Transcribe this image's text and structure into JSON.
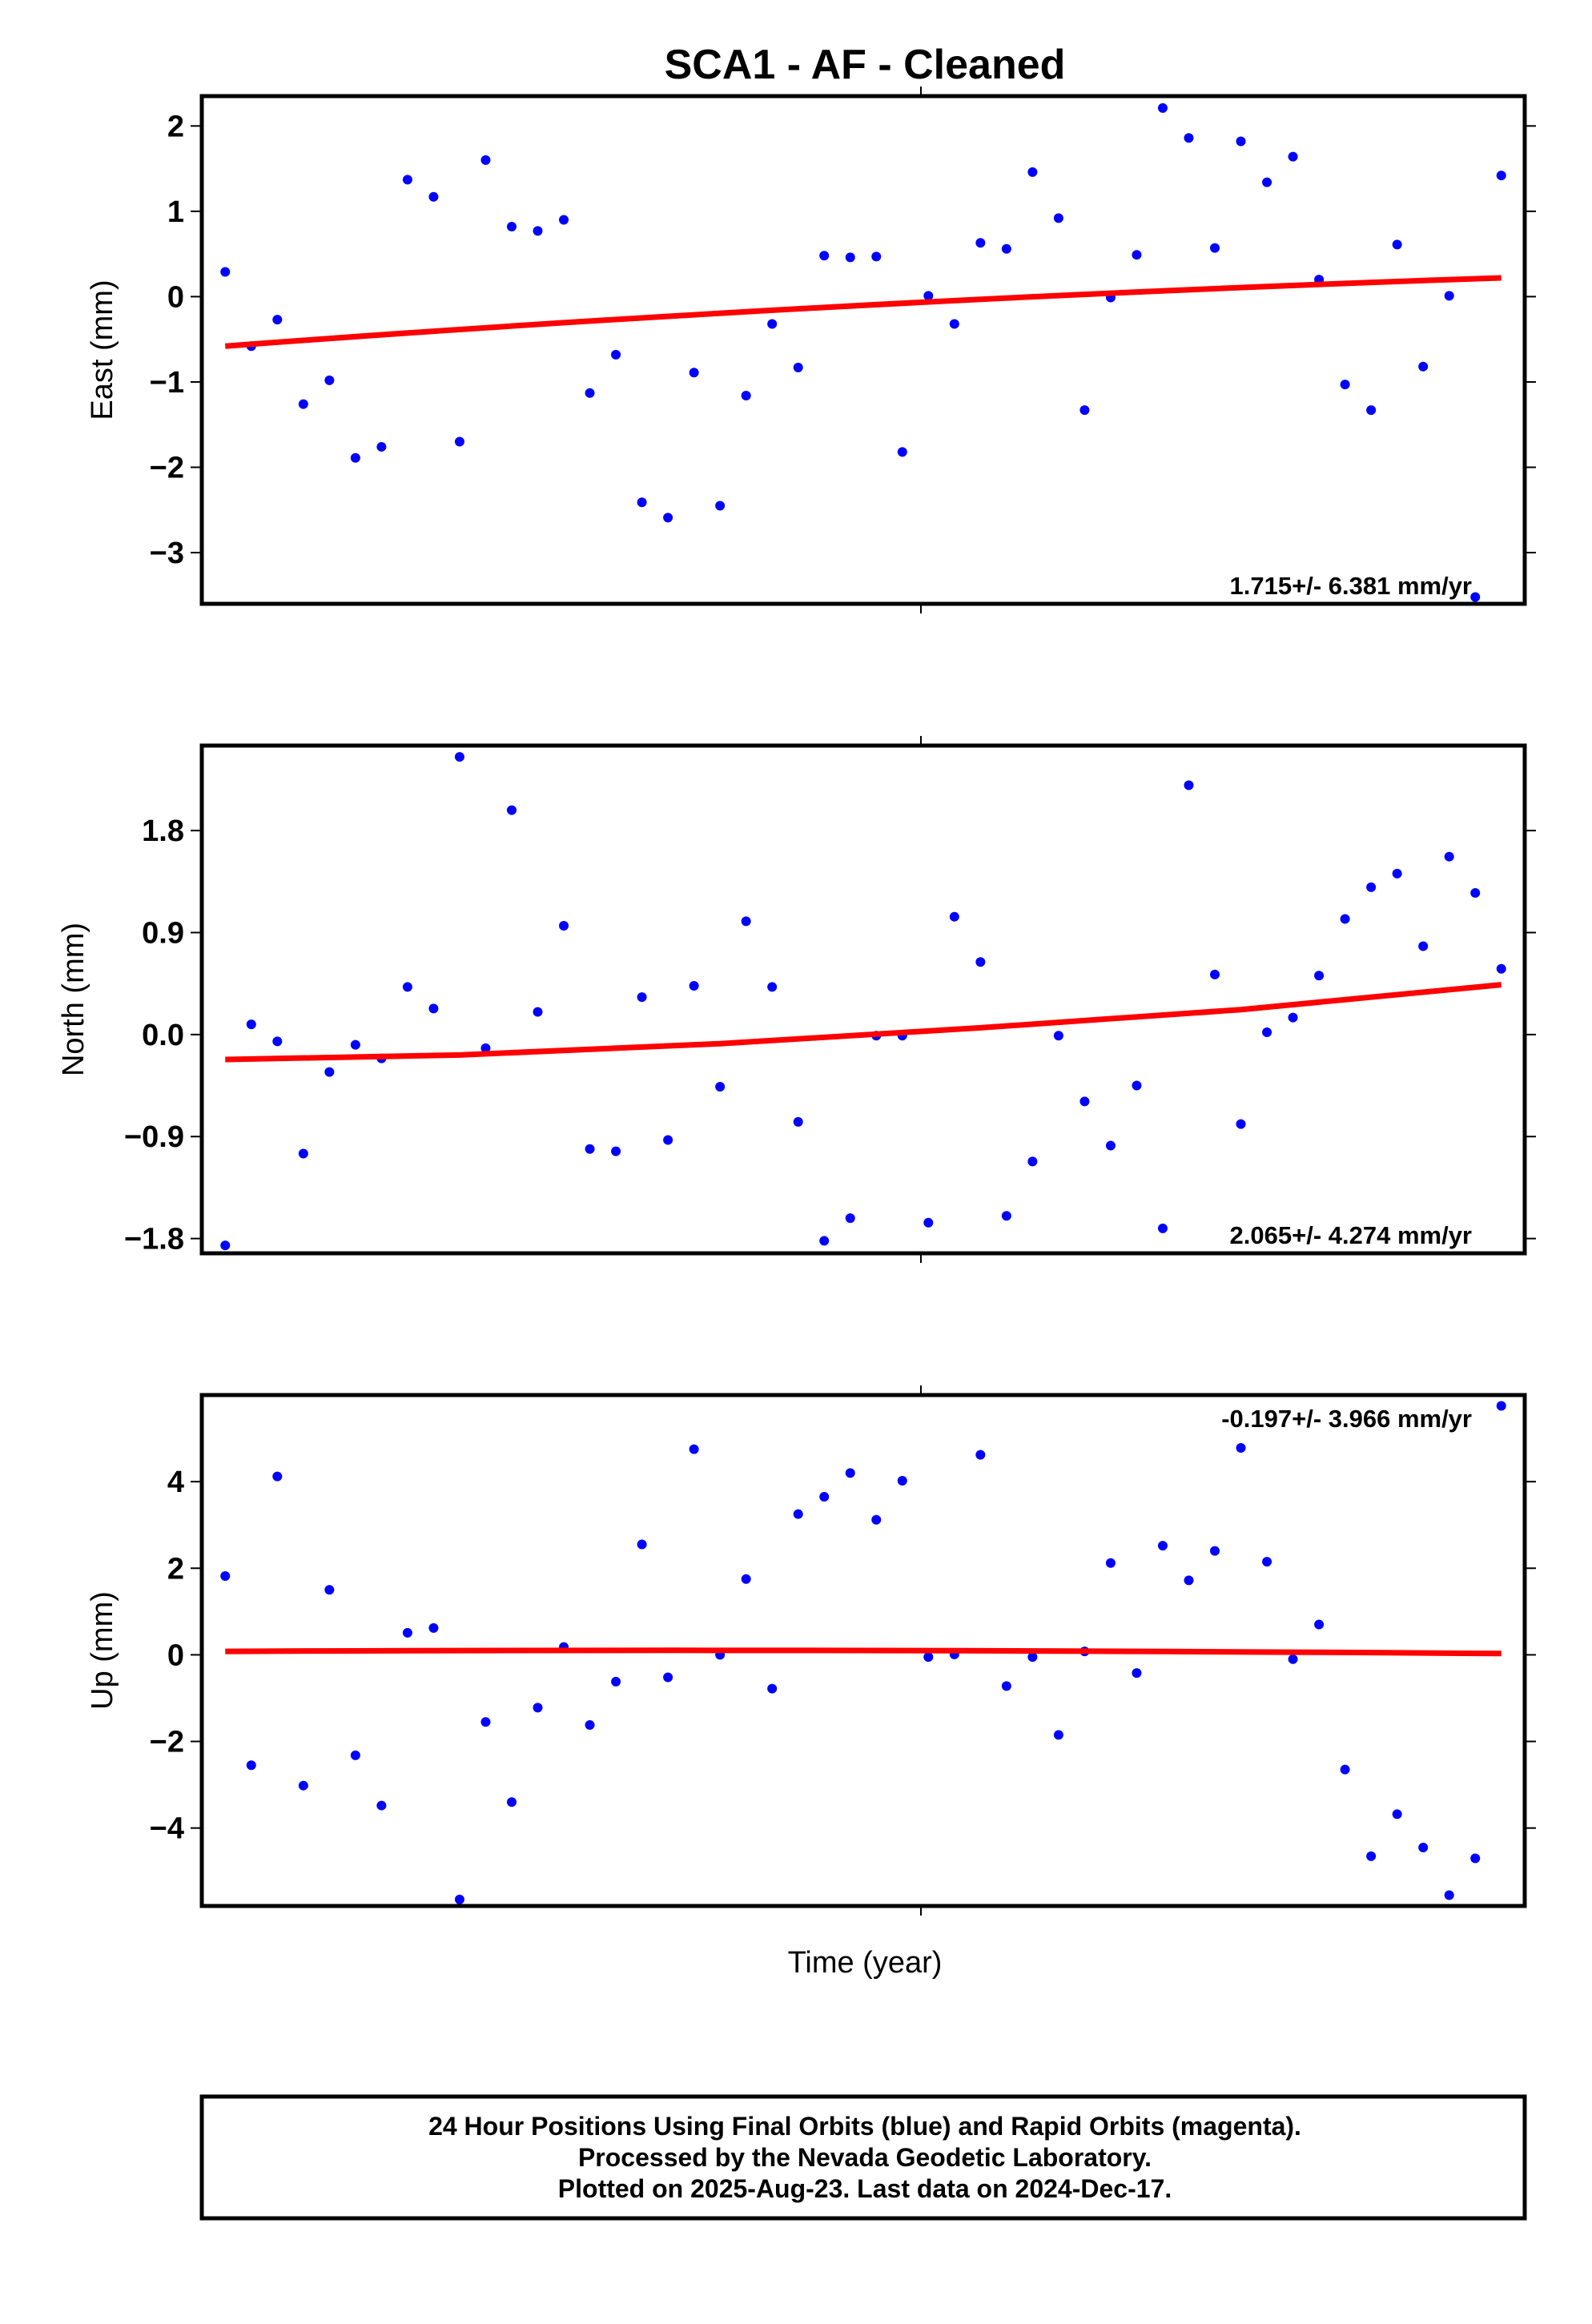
{
  "figure_title": "SCA1  - AF - Cleaned",
  "x_axis_label": "Time (year)",
  "colors": {
    "points": "#0000ff",
    "trend": "#ff0000",
    "frame": "#000000"
  },
  "chart_data": [
    {
      "type": "scatter",
      "ylabel": "East (mm)",
      "rate_label": "1.715+/- 6.381 mm/yr",
      "ylim": [
        -3.6,
        2.35
      ],
      "yticks": [
        2,
        1,
        0,
        -1,
        -2,
        -3
      ],
      "ytick_labels": [
        "2",
        "1",
        "0",
        "−1",
        "−2",
        "−3"
      ],
      "x": [
        1,
        2,
        3,
        4,
        5,
        6,
        7,
        8,
        9,
        10,
        11,
        12,
        13,
        14,
        15,
        16,
        17,
        18,
        19,
        20,
        21,
        22,
        23,
        24,
        25,
        26,
        27,
        28,
        29,
        30,
        31,
        32,
        33,
        34,
        35,
        36,
        37,
        38,
        39,
        40,
        41,
        42,
        43,
        44,
        45,
        46,
        47,
        48,
        49,
        50
      ],
      "y": [
        0.29,
        -0.58,
        -0.27,
        -1.26,
        -0.98,
        -1.89,
        -1.76,
        1.37,
        1.17,
        -1.7,
        1.6,
        0.82,
        0.77,
        0.9,
        -1.13,
        -0.68,
        -2.41,
        -2.59,
        -0.89,
        -2.45,
        -1.16,
        -0.32,
        -0.83,
        0.48,
        0.46,
        0.47,
        -1.82,
        0.01,
        -0.32,
        0.63,
        0.56,
        1.46,
        0.92,
        -1.33,
        -0.01,
        0.49,
        2.21,
        1.86,
        0.57,
        1.82,
        1.34,
        1.64,
        0.2,
        -1.03,
        -1.33,
        0.61,
        -0.82,
        0.01,
        -3.52,
        1.42
      ],
      "trend": [
        [
          1,
          -0.58
        ],
        [
          25,
          -0.11
        ],
        [
          50,
          0.22
        ]
      ]
    },
    {
      "type": "scatter",
      "ylabel": "North (mm)",
      "rate_label": "2.065+/- 4.274 mm/yr",
      "ylim": [
        -1.93,
        2.55
      ],
      "yticks": [
        1.8,
        0.9,
        0.0,
        -0.9,
        -1.8
      ],
      "ytick_labels": [
        "1.8",
        "0.9",
        "0.0",
        "−0.9",
        "−1.8"
      ],
      "x": [
        1,
        2,
        3,
        4,
        5,
        6,
        7,
        8,
        9,
        10,
        11,
        12,
        13,
        14,
        15,
        16,
        17,
        18,
        19,
        20,
        21,
        22,
        23,
        24,
        25,
        26,
        27,
        28,
        29,
        30,
        31,
        32,
        33,
        34,
        35,
        36,
        37,
        38,
        39,
        40,
        41,
        42,
        43,
        44,
        45,
        46,
        47,
        48,
        49,
        50
      ],
      "y": [
        -1.86,
        0.09,
        -0.06,
        -1.05,
        -0.33,
        -0.09,
        -0.21,
        0.42,
        0.23,
        2.45,
        -0.12,
        1.98,
        0.2,
        0.96,
        -1.01,
        -1.03,
        0.33,
        -0.93,
        0.43,
        -0.46,
        1.0,
        0.42,
        -0.77,
        -1.82,
        -1.62,
        -0.01,
        -0.01,
        -1.66,
        1.04,
        0.64,
        -1.6,
        -1.12,
        -0.01,
        -0.59,
        -0.98,
        -0.45,
        -1.71,
        2.2,
        0.53,
        -0.79,
        0.02,
        0.15,
        0.52,
        1.02,
        1.3,
        1.42,
        0.78,
        1.57,
        1.25,
        0.58
      ],
      "trend": [
        [
          1,
          -0.22
        ],
        [
          10,
          -0.18
        ],
        [
          20,
          -0.08
        ],
        [
          30,
          0.06
        ],
        [
          40,
          0.22
        ],
        [
          50,
          0.44
        ]
      ]
    },
    {
      "type": "scatter",
      "ylabel": "Up (mm)",
      "rate_label": "-0.197+/- 3.966 mm/yr",
      "ylim": [
        -5.8,
        6.0
      ],
      "yticks": [
        4,
        2,
        0,
        -2,
        -4
      ],
      "ytick_labels": [
        "4",
        "2",
        "0",
        "−2",
        "−4"
      ],
      "x": [
        1,
        2,
        3,
        4,
        5,
        6,
        7,
        8,
        9,
        10,
        11,
        12,
        13,
        14,
        15,
        16,
        17,
        18,
        19,
        20,
        21,
        22,
        23,
        24,
        25,
        26,
        27,
        28,
        29,
        30,
        31,
        32,
        33,
        34,
        35,
        36,
        37,
        38,
        39,
        40,
        41,
        42,
        43,
        44,
        45,
        46,
        47,
        48,
        49,
        50
      ],
      "y": [
        1.82,
        -2.55,
        4.12,
        -3.02,
        1.5,
        -2.32,
        -3.48,
        0.51,
        0.62,
        -5.65,
        -1.55,
        -3.4,
        -1.22,
        0.18,
        -1.62,
        -0.62,
        2.55,
        -0.52,
        4.75,
        0.0,
        1.75,
        -0.78,
        3.25,
        3.65,
        4.2,
        3.12,
        4.02,
        -0.05,
        0.01,
        4.62,
        -0.72,
        -0.05,
        -1.85,
        0.08,
        2.12,
        -0.42,
        2.52,
        1.72,
        2.4,
        4.78,
        2.15,
        -0.1,
        0.7,
        -2.65,
        -4.65,
        -3.68,
        -4.45,
        -5.55,
        -4.7,
        5.75
      ],
      "trend": [
        [
          1,
          0.08
        ],
        [
          25,
          0.1
        ],
        [
          50,
          0.03
        ]
      ]
    }
  ],
  "footer": {
    "line1": "24 Hour Positions Using Final Orbits (blue) and Rapid Orbits (magenta).",
    "line2": "Processed by the Nevada Geodetic Laboratory.",
    "line3": "Plotted on 2025-Aug-23. Last data on 2024-Dec-17."
  }
}
